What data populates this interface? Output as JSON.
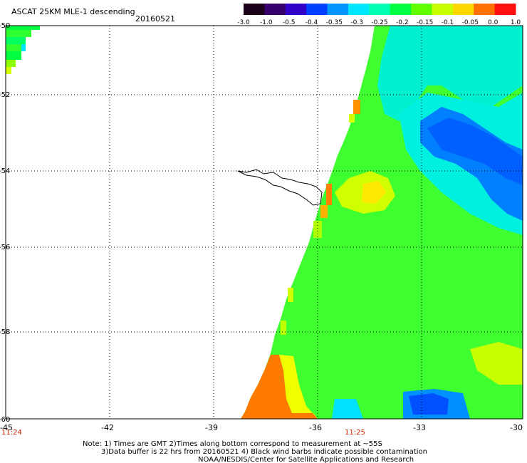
{
  "header": {
    "title": "ASCAT 25KM MLE-1 descending",
    "date": "20160521"
  },
  "colorbar": {
    "labels": [
      "-3.0",
      "-1.0",
      "-0.5",
      "-0.4",
      "-0.35",
      "-0.3",
      "-0.25",
      "-0.2",
      "-0.15",
      "-0.1",
      "-0.05",
      "0.0",
      "1.0"
    ],
    "colors": [
      "#1a0018",
      "#38006a",
      "#3000c8",
      "#0040ff",
      "#0096ff",
      "#00e6ff",
      "#00ffb0",
      "#00ff40",
      "#60ff00",
      "#c8ff00",
      "#ffd800",
      "#ff7000",
      "#ff1010"
    ]
  },
  "map": {
    "lat_labels": [
      "-50",
      "-52",
      "-54",
      "-56",
      "-58",
      "-60"
    ],
    "lon_labels": [
      "-45",
      "-42",
      "-39",
      "-36",
      "-33",
      "-30"
    ],
    "lat_range": [
      -60,
      -50
    ],
    "lon_range": [
      -45,
      -30
    ],
    "time_labels": [
      "11:24",
      "11:25"
    ],
    "time_color": "#cc2200",
    "grid": "dotted"
  },
  "notes": {
    "line1": "Note: 1) Times are GMT 2)Times along bottom correspond to measurement at ~55S",
    "line2": "3)Data buffer is 22 hrs from 20160521 4) Black wind barbs indicate possible contamination",
    "line3": "NOAA/NESDIS/Center for Satellite Applications and Research"
  }
}
